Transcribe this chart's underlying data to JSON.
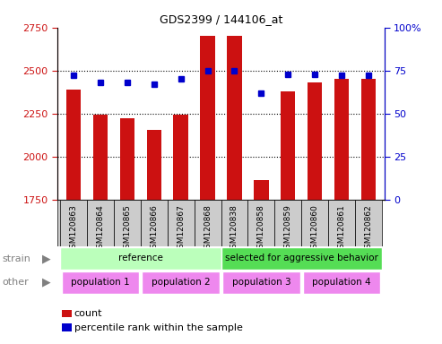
{
  "title": "GDS2399 / 144106_at",
  "samples": [
    "GSM120863",
    "GSM120864",
    "GSM120865",
    "GSM120866",
    "GSM120867",
    "GSM120868",
    "GSM120838",
    "GSM120858",
    "GSM120859",
    "GSM120860",
    "GSM120861",
    "GSM120862"
  ],
  "counts": [
    2390,
    2245,
    2225,
    2155,
    2245,
    2700,
    2700,
    1865,
    2380,
    2430,
    2450,
    2450
  ],
  "percentiles": [
    72,
    68,
    68,
    67,
    70,
    75,
    75,
    62,
    73,
    73,
    72,
    72
  ],
  "ylim_left": [
    1750,
    2750
  ],
  "ylim_right": [
    0,
    100
  ],
  "yticks_left": [
    1750,
    2000,
    2250,
    2500,
    2750
  ],
  "yticks_right": [
    0,
    25,
    50,
    75,
    100
  ],
  "bar_color": "#cc1111",
  "dot_color": "#0000cc",
  "strain_groups": [
    {
      "label": "reference",
      "start": 0,
      "end": 6,
      "color": "#bbffbb"
    },
    {
      "label": "selected for aggressive behavior",
      "start": 6,
      "end": 12,
      "color": "#55dd55"
    }
  ],
  "other_groups": [
    {
      "label": "population 1",
      "start": 0,
      "end": 3,
      "color": "#ee88ee"
    },
    {
      "label": "population 2",
      "start": 3,
      "end": 6,
      "color": "#ee88ee"
    },
    {
      "label": "population 3",
      "start": 6,
      "end": 9,
      "color": "#ee88ee"
    },
    {
      "label": "population 4",
      "start": 9,
      "end": 12,
      "color": "#ee88ee"
    }
  ],
  "strain_label": "strain",
  "other_label": "other",
  "legend_count_label": "count",
  "legend_pct_label": "percentile rank within the sample",
  "bg_color": "#ffffff",
  "plot_bg": "#ffffff",
  "tick_label_color_left": "#cc1111",
  "tick_label_color_right": "#0000cc",
  "baseline": 1750,
  "grid_dotted_at": [
    2000,
    2250,
    2500
  ],
  "xticklabel_bg": "#cccccc"
}
